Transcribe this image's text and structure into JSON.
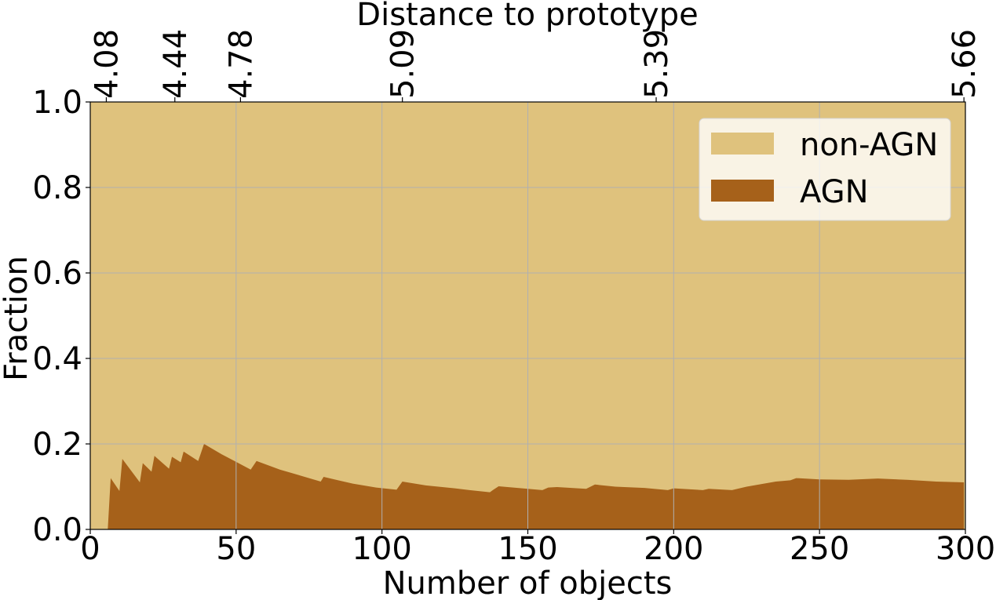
{
  "chart_data": {
    "type": "area",
    "stacked": true,
    "xlabel": "Number of objects",
    "ylabel": "Fraction",
    "top_xlabel": "Distance to prototype",
    "xlim": [
      0,
      300
    ],
    "ylim": [
      0,
      1
    ],
    "x_ticks": [
      0,
      50,
      100,
      150,
      200,
      250,
      300
    ],
    "x_tick_labels": [
      "0",
      "50",
      "100",
      "150",
      "200",
      "250",
      "300"
    ],
    "y_ticks": [
      0,
      0.2,
      0.4,
      0.6,
      0.8,
      1.0
    ],
    "y_tick_labels": [
      "0.0",
      "0.2",
      "0.4",
      "0.6",
      "0.8",
      "1.0"
    ],
    "top_ticks": [
      {
        "x": 5.5,
        "label": "4.08"
      },
      {
        "x": 29,
        "label": "4.44"
      },
      {
        "x": 51.5,
        "label": "4.78"
      },
      {
        "x": 107,
        "label": "5.09"
      },
      {
        "x": 194,
        "label": "5.39"
      },
      {
        "x": 299.5,
        "label": "5.66"
      }
    ],
    "grid": true,
    "legend_placement": "top-right",
    "series": [
      {
        "name": "non-AGN",
        "color": "#dfc27d",
        "x": [
          0,
          300
        ],
        "y": [
          1.0,
          1.0
        ]
      },
      {
        "name": "AGN",
        "color": "#a6611a",
        "x": [
          0,
          6,
          6,
          7,
          10,
          11,
          17,
          18,
          21,
          22,
          27,
          28,
          31,
          32,
          37,
          39,
          45,
          50,
          55,
          57,
          65,
          70,
          79,
          80,
          85,
          90,
          98,
          105,
          107,
          115,
          125,
          130,
          137,
          138,
          140,
          150,
          155,
          157,
          160,
          170,
          173,
          180,
          190,
          198,
          200,
          210,
          212,
          220,
          225,
          230,
          235,
          240,
          242,
          250,
          260,
          270,
          280,
          290,
          299.5
        ],
        "y": [
          0.0,
          0.0,
          0.0,
          0.12,
          0.09,
          0.165,
          0.11,
          0.155,
          0.135,
          0.172,
          0.142,
          0.17,
          0.157,
          0.182,
          0.16,
          0.2,
          0.176,
          0.158,
          0.14,
          0.16,
          0.14,
          0.13,
          0.112,
          0.123,
          0.115,
          0.107,
          0.098,
          0.093,
          0.112,
          0.103,
          0.096,
          0.092,
          0.087,
          0.092,
          0.101,
          0.095,
          0.092,
          0.098,
          0.099,
          0.095,
          0.105,
          0.1,
          0.097,
          0.092,
          0.096,
          0.092,
          0.095,
          0.092,
          0.1,
          0.106,
          0.112,
          0.115,
          0.12,
          0.117,
          0.116,
          0.119,
          0.116,
          0.112,
          0.11
        ]
      }
    ]
  }
}
